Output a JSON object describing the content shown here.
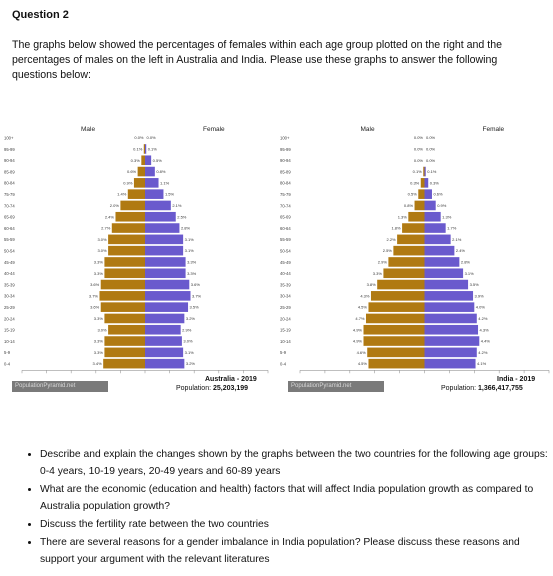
{
  "question_title": "Question 2",
  "intro": "The graphs below showed the percentages of females within each age group plotted on the right and the percentages of males on the left in Australia and India. Please use these graphs to answer the following questions below:",
  "age_groups": [
    "100+",
    "95-99",
    "90-94",
    "85-89",
    "80-84",
    "75-79",
    "70-74",
    "65-69",
    "60-64",
    "55-59",
    "50-54",
    "45-49",
    "40-44",
    "35-39",
    "30-34",
    "25-29",
    "20-24",
    "15-19",
    "10-14",
    "5-9",
    "0-4"
  ],
  "male_label": "Male",
  "female_label": "Female",
  "colors": {
    "male": "#b07a12",
    "female": "#6a5acd"
  },
  "source_badge": "PopulationPyramid.net",
  "chart_data": [
    {
      "type": "bar",
      "country": "Australia - 2019",
      "population_label": "Population:",
      "population": "25,203,199",
      "x_ticks": [
        "10%",
        "8%",
        "6%",
        "4%",
        "2%",
        "0%",
        "2%",
        "4%",
        "6%",
        "8%",
        "10%"
      ],
      "xlim": [
        -10,
        10
      ],
      "categories": [
        "100+",
        "95-99",
        "90-94",
        "85-89",
        "80-84",
        "75-79",
        "70-74",
        "65-69",
        "60-64",
        "55-59",
        "50-54",
        "45-49",
        "40-44",
        "35-39",
        "30-34",
        "25-29",
        "20-24",
        "15-19",
        "10-14",
        "5-9",
        "0-4"
      ],
      "series": [
        {
          "name": "Male",
          "values": [
            0.0,
            0.1,
            0.3,
            0.6,
            0.9,
            1.4,
            2.0,
            2.4,
            2.7,
            3.0,
            3.0,
            3.3,
            3.3,
            3.6,
            3.7,
            3.6,
            3.3,
            3.0,
            3.3,
            3.3,
            3.4
          ]
        },
        {
          "name": "Female",
          "values": [
            0.0,
            0.1,
            0.5,
            0.8,
            1.1,
            1.5,
            2.1,
            2.5,
            2.8,
            3.1,
            3.1,
            3.3,
            3.3,
            3.6,
            3.7,
            3.5,
            3.2,
            2.9,
            3.0,
            3.1,
            3.2
          ]
        }
      ],
      "bar_labels": {
        "male": [
          "0.0%",
          "0.1%",
          "0.3%",
          "0.6%",
          "0.9%",
          "1.4%",
          "2.0%",
          "2.4%",
          "2.7%",
          "3.0%",
          "3.0%",
          "3.3%",
          "3.3%",
          "3.6%",
          "3.7%",
          "3.6%",
          "3.3%",
          "3.0%",
          "3.3%",
          "3.3%",
          "3.4%"
        ],
        "female": [
          "0.0%",
          "0.1%",
          "0.5%",
          "0.8%",
          "1.1%",
          "1.5%",
          "2.1%",
          "2.5%",
          "2.8%",
          "3.1%",
          "3.1%",
          "3.3%",
          "3.3%",
          "3.6%",
          "3.7%",
          "3.5%",
          "3.2%",
          "2.9%",
          "3.0%",
          "3.1%",
          "3.2%"
        ]
      }
    },
    {
      "type": "bar",
      "country": "India - 2019",
      "population_label": "Population:",
      "population": "1,366,417,755",
      "x_ticks": [
        "10%",
        "8%",
        "6%",
        "4%",
        "2%",
        "0%",
        "2%",
        "4%",
        "6%",
        "8%",
        "10%"
      ],
      "xlim": [
        -10,
        10
      ],
      "categories": [
        "100+",
        "95-99",
        "90-94",
        "85-89",
        "80-84",
        "75-79",
        "70-74",
        "65-69",
        "60-64",
        "55-59",
        "50-54",
        "45-49",
        "40-44",
        "35-39",
        "30-34",
        "25-29",
        "20-24",
        "15-19",
        "10-14",
        "5-9",
        "0-4"
      ],
      "series": [
        {
          "name": "Male",
          "values": [
            0.0,
            0.0,
            0.0,
            0.1,
            0.3,
            0.5,
            0.8,
            1.3,
            1.8,
            2.2,
            2.5,
            2.9,
            3.3,
            3.8,
            4.3,
            4.5,
            4.7,
            4.9,
            4.9,
            4.6,
            4.5
          ]
        },
        {
          "name": "Female",
          "values": [
            0.0,
            0.0,
            0.0,
            0.1,
            0.3,
            0.6,
            0.9,
            1.3,
            1.7,
            2.1,
            2.4,
            2.8,
            3.1,
            3.5,
            3.9,
            4.0,
            4.2,
            4.3,
            4.4,
            4.2,
            4.1
          ]
        }
      ],
      "bar_labels": {
        "male": [
          "0.0%",
          "0.0%",
          "0.0%",
          "0.1%",
          "0.3%",
          "0.5%",
          "0.8%",
          "1.3%",
          "1.8%",
          "2.2%",
          "2.5%",
          "2.9%",
          "3.3%",
          "3.8%",
          "4.3%",
          "4.5%",
          "4.7%",
          "4.9%",
          "4.9%",
          "4.6%",
          "4.5%"
        ],
        "female": [
          "0.0%",
          "0.0%",
          "0.0%",
          "0.1%",
          "0.3%",
          "0.6%",
          "0.9%",
          "1.3%",
          "1.7%",
          "2.1%",
          "2.4%",
          "2.8%",
          "3.1%",
          "3.5%",
          "3.9%",
          "4.0%",
          "4.2%",
          "4.3%",
          "4.4%",
          "4.2%",
          "4.1%"
        ]
      }
    }
  ],
  "questions": [
    "Describe and explain the changes shown by the graphs between the two countries for the following age groups: 0-4 years, 10-19 years, 20-49 years and 60-89 years",
    "What are the economic (education and health) factors that will affect India population growth as compared to Australia population growth?",
    "Discuss the fertility rate between the two countries",
    "There are several reasons for a gender imbalance in India population? Please discuss these reasons and support your argument with the relevant literatures"
  ]
}
